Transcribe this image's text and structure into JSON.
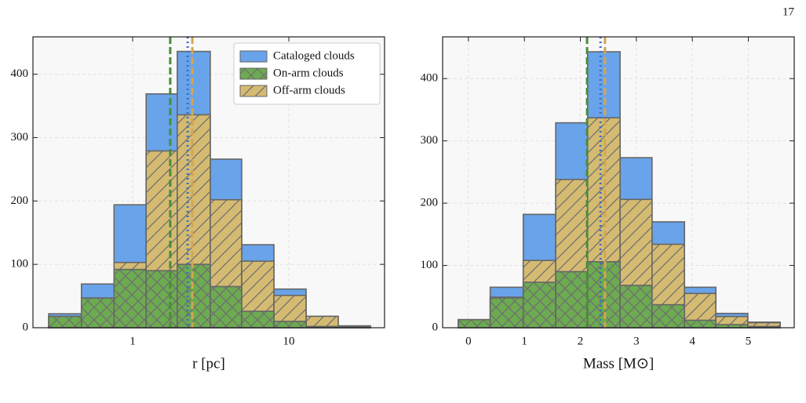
{
  "page_number": "17",
  "chart_data": [
    {
      "type": "histogram",
      "xlabel": "r [pc]",
      "xscale": "log",
      "xlim": [
        0.23,
        41
      ],
      "xticks": [
        1,
        10
      ],
      "ylim": [
        0,
        459
      ],
      "yticks": [
        0,
        100,
        200,
        300,
        400
      ],
      "grid": true,
      "legend": "upper right",
      "bins": [
        0.29,
        0.47,
        0.76,
        1.22,
        1.93,
        3.14,
        4.99,
        8.03,
        12.9,
        20.7,
        33.3
      ],
      "series": [
        {
          "name": "Cataloged clouds",
          "color": "#69a3e9",
          "hatch": "none",
          "median": 2.25,
          "median_style": "dotted",
          "median_color": "#3a6fc4",
          "values": [
            22,
            69,
            194,
            369,
            436,
            266,
            131,
            61,
            18,
            3
          ]
        },
        {
          "name": "On-arm clouds",
          "color": "#6cab50",
          "hatch": "x",
          "median": 1.74,
          "median_style": "dashed",
          "median_color": "#4a8c3a",
          "values": [
            18,
            47,
            92,
            90,
            100,
            65,
            26,
            10,
            2,
            1
          ]
        },
        {
          "name": "Off-arm clouds",
          "color": "#d5bb72",
          "hatch": "/",
          "median": 2.41,
          "median_style": "dashed",
          "median_color": "#d4a650",
          "values": [
            4,
            22,
            103,
            279,
            336,
            202,
            105,
            51,
            18,
            2
          ]
        }
      ]
    },
    {
      "type": "histogram",
      "xlabel": "Mass [M⊙]",
      "xscale": "linear",
      "xlim": [
        -0.46,
        5.82
      ],
      "xticks": [
        0,
        1,
        2,
        3,
        4,
        5
      ],
      "ylim": [
        0,
        467
      ],
      "yticks": [
        0,
        100,
        200,
        300,
        400
      ],
      "grid": true,
      "bins": [
        -0.18,
        0.39,
        0.98,
        1.56,
        2.13,
        2.71,
        3.28,
        3.86,
        4.42,
        4.99,
        5.57
      ],
      "series": [
        {
          "color": "#69a3e9",
          "hatch": "none",
          "median": 2.36,
          "median_style": "dotted",
          "median_color": "#3a6fc4",
          "values": [
            13,
            65,
            182,
            329,
            443,
            273,
            170,
            65,
            23,
            9
          ]
        },
        {
          "color": "#6cab50",
          "hatch": "x",
          "median": 2.12,
          "median_style": "dashed",
          "median_color": "#4a8c3a",
          "values": [
            13,
            48,
            73,
            90,
            106,
            68,
            37,
            12,
            5,
            2
          ]
        },
        {
          "color": "#d5bb72",
          "hatch": "/",
          "median": 2.44,
          "median_style": "dashed",
          "median_color": "#d4a650",
          "values": [
            12,
            49,
            108,
            238,
            337,
            206,
            134,
            55,
            18,
            8
          ]
        }
      ]
    }
  ]
}
